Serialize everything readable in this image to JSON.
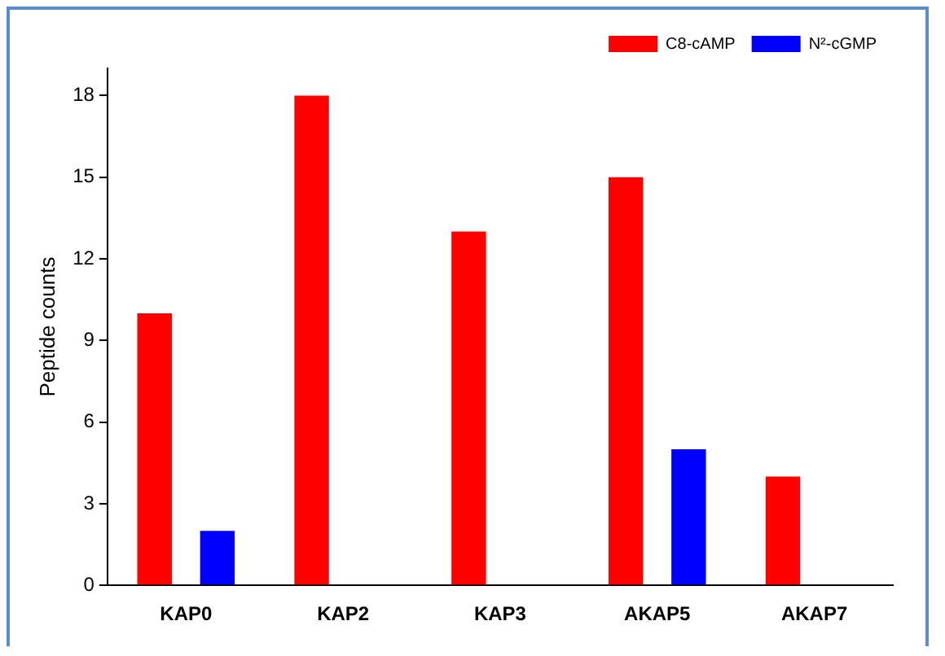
{
  "chart_data": {
    "type": "bar",
    "ylabel": "Peptide counts",
    "categories": [
      "KAP0",
      "KAP2",
      "KAP3",
      "AKAP5",
      "AKAP7"
    ],
    "series": [
      {
        "name": "C8-cAMP",
        "color": "#ff0000",
        "values": [
          10,
          18,
          13,
          15,
          4
        ]
      },
      {
        "name": "N²-cGMP",
        "color": "#0000ff",
        "values": [
          2,
          0,
          0,
          5,
          0
        ]
      }
    ],
    "ylim": [
      0,
      19
    ],
    "yticks": [
      0,
      3,
      6,
      9,
      12,
      15,
      18
    ],
    "grid": false,
    "legend": "top right"
  }
}
